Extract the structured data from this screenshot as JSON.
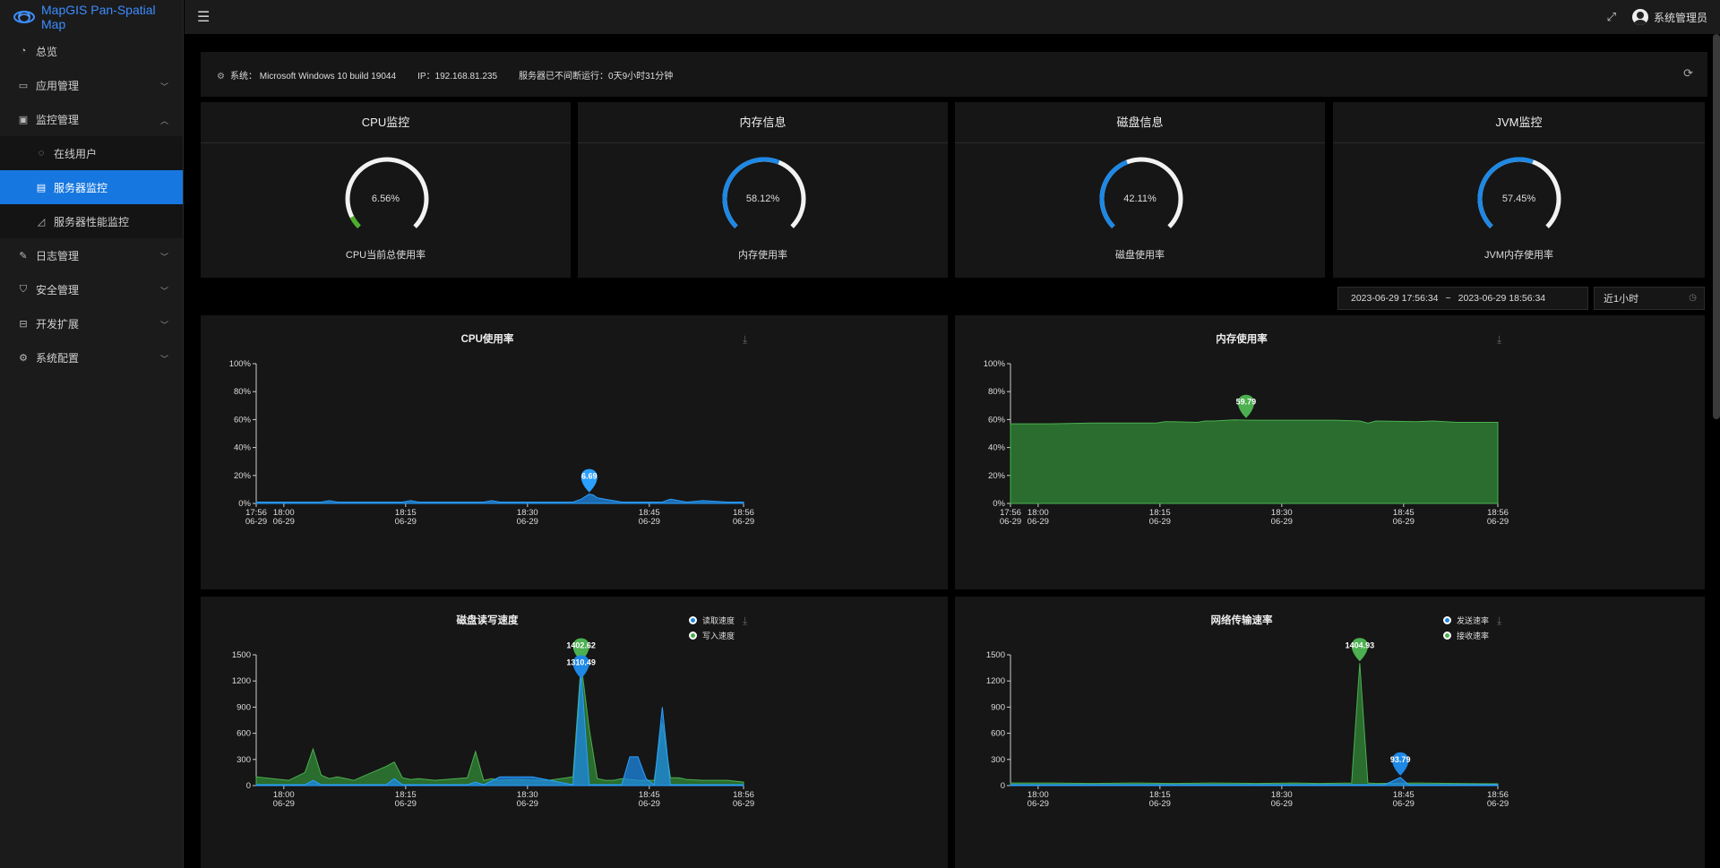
{
  "app": {
    "title": "MapGIS Pan-Spatial Map"
  },
  "sidebar": {
    "items": [
      {
        "label": "总览",
        "icon": "dashboard-icon"
      },
      {
        "label": "应用管理",
        "icon": "monitor-icon",
        "expanded": false
      },
      {
        "label": "监控管理",
        "icon": "chart-monitor-icon",
        "expanded": true
      },
      {
        "label": "在线用户",
        "icon": "online-user-icon",
        "sub": true
      },
      {
        "label": "服务器监控",
        "icon": "server-icon",
        "sub": true,
        "active": true
      },
      {
        "label": "服务器性能监控",
        "icon": "performance-icon",
        "sub": true
      },
      {
        "label": "日志管理",
        "icon": "log-icon",
        "expanded": false
      },
      {
        "label": "安全管理",
        "icon": "shield-icon",
        "expanded": false
      },
      {
        "label": "开发扩展",
        "icon": "extension-icon",
        "expanded": false
      },
      {
        "label": "系统配置",
        "icon": "gear-icon",
        "expanded": false
      }
    ]
  },
  "topbar": {
    "user": "系统管理员"
  },
  "sysinfo": {
    "system_label": "系统：",
    "system": "Microsoft Windows 10 build 19044",
    "ip_label": "IP：",
    "ip": "192.168.81.235",
    "uptime_label": "服务器已不间断运行：",
    "uptime": "0天9小时31分钟"
  },
  "gauges": [
    {
      "title": "CPU监控",
      "value": "6.56%",
      "label": "CPU当前总使用率",
      "percent": 6.56,
      "color": "#4caf2a"
    },
    {
      "title": "内存信息",
      "value": "58.12%",
      "label": "内存使用率",
      "percent": 58.12,
      "color": "#1e88e5"
    },
    {
      "title": "磁盘信息",
      "value": "42.11%",
      "label": "磁盘使用率",
      "percent": 42.11,
      "color": "#1e88e5"
    },
    {
      "title": "JVM监控",
      "value": "57.45%",
      "label": "JVM内存使用率",
      "percent": 57.45,
      "color": "#1e88e5"
    }
  ],
  "timerange": {
    "start": "2023-06-29 17:56:34",
    "sep": "~",
    "end": "2023-06-29 18:56:34",
    "preset": "近1小时"
  },
  "chart_data": [
    {
      "type": "area",
      "title": "CPU使用率",
      "ylim": [
        0,
        100
      ],
      "yticks": [
        "0%",
        "20%",
        "40%",
        "60%",
        "80%",
        "100%"
      ],
      "xticks": [
        [
          "17:56",
          "06-29"
        ],
        [
          "18:00",
          "06-29"
        ],
        [
          "18:15",
          "06-29"
        ],
        [
          "18:30",
          "06-29"
        ],
        [
          "18:45",
          "06-29"
        ],
        [
          "18:56",
          "06-29"
        ]
      ],
      "xtick_times": [
        0,
        3.4,
        18.4,
        33.4,
        48.4,
        60
      ],
      "color": "#1e88e5",
      "series": [
        {
          "x": [
            0,
            5,
            8,
            9,
            10,
            18,
            19,
            20,
            28,
            29,
            30,
            39,
            40,
            41,
            41.5,
            42,
            43,
            44,
            45,
            50,
            51,
            52,
            53,
            55,
            58,
            60
          ],
          "values": [
            1,
            1,
            1,
            2,
            1,
            1,
            2,
            1,
            1,
            2,
            1,
            1,
            3,
            6.69,
            6,
            4,
            3,
            2,
            1,
            1,
            3,
            2,
            1,
            2,
            1,
            1
          ]
        }
      ],
      "marker": {
        "x": 41,
        "value": "6.69"
      }
    },
    {
      "type": "area",
      "title": "内存使用率",
      "ylim": [
        0,
        100
      ],
      "yticks": [
        "0%",
        "20%",
        "40%",
        "60%",
        "80%",
        "100%"
      ],
      "xticks": [
        [
          "17:56",
          "06-29"
        ],
        [
          "18:00",
          "06-29"
        ],
        [
          "18:15",
          "06-29"
        ],
        [
          "18:30",
          "06-29"
        ],
        [
          "18:45",
          "06-29"
        ],
        [
          "18:56",
          "06-29"
        ]
      ],
      "xtick_times": [
        0,
        3.4,
        18.4,
        33.4,
        48.4,
        60
      ],
      "color": "#2e7d32",
      "series": [
        {
          "x": [
            0,
            5,
            10,
            15,
            18,
            19,
            20,
            23,
            24,
            25,
            27.5,
            30,
            35,
            40,
            43,
            44,
            45,
            50,
            52,
            55,
            60
          ],
          "values": [
            57,
            57,
            57.5,
            57.5,
            57.5,
            58.5,
            58.5,
            58,
            59,
            59,
            59.79,
            59.5,
            59.5,
            59.5,
            59,
            57.5,
            59,
            58.5,
            59,
            58,
            58
          ]
        }
      ],
      "marker": {
        "x": 29,
        "value": "59.79"
      }
    },
    {
      "type": "area",
      "title": "磁盘读写速度",
      "ylim": [
        0,
        1500
      ],
      "yticks": [
        "0",
        "300",
        "600",
        "900",
        "1200",
        "1500"
      ],
      "xticks": [
        [
          "18:00",
          "06-29"
        ],
        [
          "18:15",
          "06-29"
        ],
        [
          "18:30",
          "06-29"
        ],
        [
          "18:45",
          "06-29"
        ],
        [
          "18:56",
          "06-29"
        ]
      ],
      "xtick_times": [
        3.4,
        18.4,
        33.4,
        48.4,
        60
      ],
      "legend": [
        {
          "name": "读取速度",
          "color": "#1e88e5"
        },
        {
          "name": "写入速度",
          "color": "#4caf50"
        }
      ],
      "series": [
        {
          "name": "写入速度",
          "color": "#2e7d32",
          "x": [
            0,
            2,
            4,
            6,
            7,
            8,
            9,
            10,
            12,
            16,
            17,
            18,
            19,
            20,
            22,
            26,
            27,
            28,
            29,
            30,
            32,
            34,
            36,
            39,
            40,
            41,
            42,
            43,
            44,
            45,
            47,
            49,
            50,
            51,
            52,
            53,
            55,
            58,
            60
          ],
          "values": [
            100,
            80,
            60,
            150,
            420,
            120,
            80,
            100,
            60,
            220,
            270,
            90,
            70,
            80,
            60,
            90,
            390,
            60,
            80,
            60,
            70,
            60,
            60,
            100,
            1402.62,
            650,
            80,
            60,
            60,
            80,
            60,
            60,
            720,
            90,
            90,
            70,
            60,
            60,
            40
          ]
        },
        {
          "name": "读取速度",
          "color": "#1e88e5",
          "x": [
            0,
            6,
            7,
            8,
            16,
            17,
            18,
            26,
            27,
            28,
            30,
            34,
            39,
            40,
            41,
            45,
            46,
            47,
            48,
            49,
            50,
            51,
            60
          ],
          "values": [
            10,
            10,
            60,
            10,
            10,
            80,
            10,
            10,
            40,
            10,
            100,
            100,
            10,
            1310.49,
            10,
            10,
            330,
            330,
            80,
            10,
            900,
            10,
            10
          ]
        }
      ],
      "marker": [
        {
          "x": 40,
          "value": "1402.62"
        },
        {
          "x": 40,
          "value": "1310.49"
        }
      ]
    },
    {
      "type": "area",
      "title": "网络传输速率",
      "ylim": [
        0,
        1500
      ],
      "yticks": [
        "0",
        "300",
        "600",
        "900",
        "1200",
        "1500"
      ],
      "xticks": [
        [
          "18:00",
          "06-29"
        ],
        [
          "18:15",
          "06-29"
        ],
        [
          "18:30",
          "06-29"
        ],
        [
          "18:45",
          "06-29"
        ],
        [
          "18:56",
          "06-29"
        ]
      ],
      "xtick_times": [
        3.4,
        18.4,
        33.4,
        48.4,
        60
      ],
      "legend": [
        {
          "name": "发送速率",
          "color": "#1e88e5"
        },
        {
          "name": "接收速率",
          "color": "#4caf50"
        }
      ],
      "series": [
        {
          "name": "接收速率",
          "color": "#2e7d32",
          "x": [
            0,
            5,
            10,
            15,
            20,
            25,
            30,
            35,
            38,
            42,
            43,
            44,
            45,
            50,
            55,
            60
          ],
          "values": [
            30,
            30,
            25,
            30,
            25,
            30,
            25,
            30,
            25,
            30,
            1404.93,
            30,
            25,
            30,
            25,
            20
          ]
        },
        {
          "name": "发送速率",
          "color": "#1e88e5",
          "x": [
            0,
            46,
            47,
            48,
            49,
            60
          ],
          "values": [
            10,
            10,
            50,
            93.79,
            10,
            10
          ]
        }
      ],
      "marker": [
        {
          "x": 43,
          "value": "1404.93"
        },
        {
          "x": 48,
          "value": "93.79"
        }
      ]
    }
  ]
}
